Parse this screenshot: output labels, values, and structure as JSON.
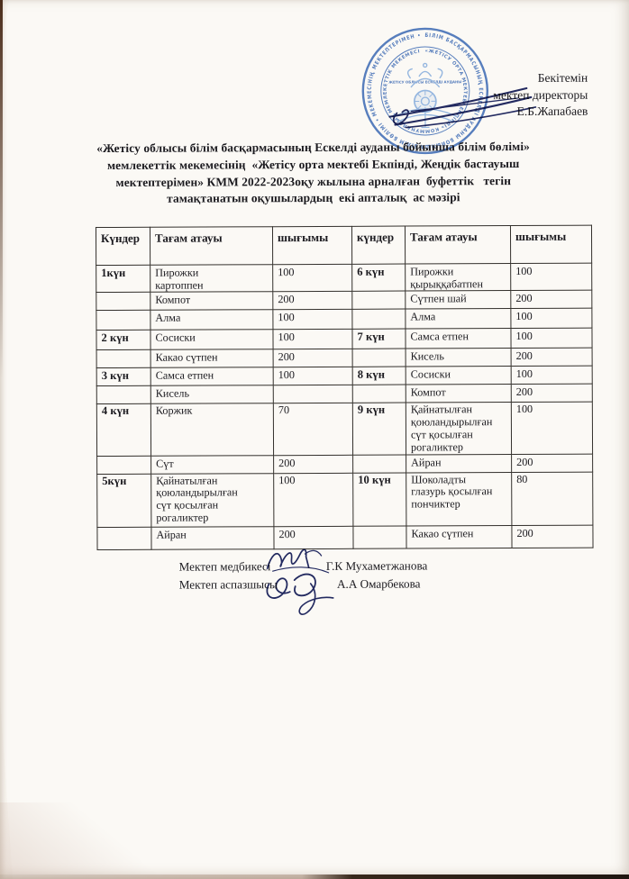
{
  "approval": {
    "heading": "Бекітемін",
    "role": "мектеп директоры",
    "name": "Е.Б.Жапабаев"
  },
  "title": {
    "line1": "«Жетісу облысы білім басқармасының Ескелді ауданы бойынша білім бөлімі»",
    "line2": "мемлекеттік мекемесінің  «Жетісу орта мектебі Екпінді, Жеңдік бастауыш",
    "line3": "мектептерімен» КММ 2022-2023оқу жылына арналған  буфеттік   тегін",
    "line4": "тамақтанатын оқушылардың  екі апталық  ас мәзірі"
  },
  "table": {
    "headers": [
      "Күндер",
      "Тағам атауы",
      "шығымы",
      "күндер",
      "Тағам атауы",
      "шығымы"
    ],
    "rows": [
      [
        "1күн",
        "Пирожки\nкартоппен",
        "100",
        "6 күн",
        "Пирожки\nқырыққабатпен",
        "100"
      ],
      [
        "",
        "Компот",
        "200",
        "",
        "Сүтпен шай",
        "200"
      ],
      [
        "",
        "Алма",
        "100",
        "",
        "Алма",
        "100"
      ],
      [
        "2 күн",
        "Сосиски",
        "100",
        "7 күн",
        "Самса етпен",
        "100"
      ],
      [
        "",
        "Какао сүтпен",
        "200",
        "",
        "Кисель",
        "200"
      ],
      [
        "3 күн",
        "Самса етпен",
        "100",
        "8 күн",
        "Сосиски",
        "100"
      ],
      [
        "",
        "Кисель",
        "",
        "",
        "Компот",
        "200"
      ],
      [
        "4 күн",
        "Коржик",
        "70",
        "9 күн",
        "Қайнатылған\nқоюландырылған\nсүт қосылған\nрогаликтер",
        "100"
      ],
      [
        "",
        "Сүт",
        "200",
        "",
        "Айран",
        "200"
      ],
      [
        "5күн",
        "Қайнатылған\nқоюландырылған\nсүт қосылған\nрогаликтер",
        "100",
        "10 күн",
        "Шоколадты\nглазурь қосылған\nпончиктер",
        "80"
      ],
      [
        "",
        "Айран",
        "200",
        "",
        "Какао сүтпен",
        "200"
      ]
    ]
  },
  "signatures": {
    "nurse_label": "Мектеп медбикесі",
    "nurse_name": "Г.К Мухаметжанова",
    "cook_label": "Мектеп аспазшысы",
    "cook_name": "А.А Омарбекова"
  },
  "stamp": {
    "outer_text": "БІЛІМ БАСҚАРМАСЫНЫҢ ЕСКЕЛДІ АУДАНЫ БОЙЫНША БІЛІМ БӨЛІМІ • МЕКЕМЕСІНІҢ МЕКТЕПТЕРІМЕН •",
    "inner_text": "«ЖЕТІСУ ОРТА МЕКТЕБІ ЕКПІНДІ» КОММУНАЛДЫҚ МЕМЛЕКЕТТІК МЕКЕМЕСІ",
    "center_text": "ЖЕТІСУ ОБЛЫСЫ ЕСКЕЛДІ АУДАНЫ"
  },
  "colors": {
    "stamp_blue": "#4a74b8",
    "emblem_blue": "#8db1dd",
    "ink_blue": "#232a60",
    "text_black": "#1b1a1f"
  }
}
